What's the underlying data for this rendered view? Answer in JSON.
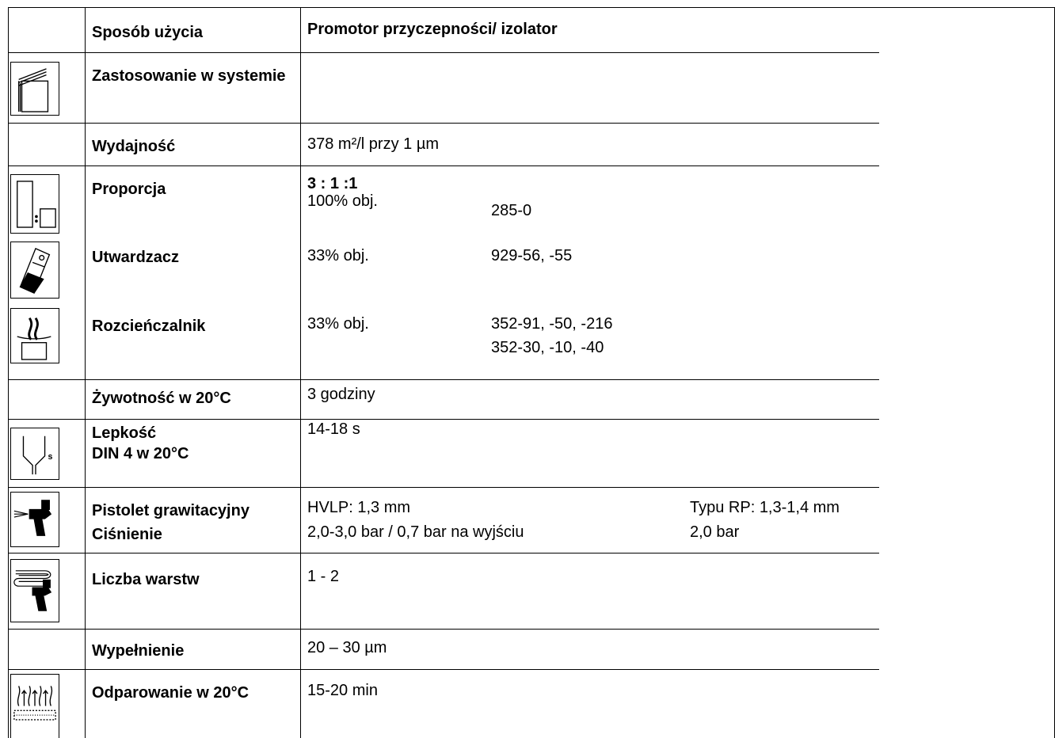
{
  "header": {
    "col1": "Sposób użycia",
    "col2": "Promotor przyczepności/ izolator"
  },
  "rows": {
    "system": {
      "label": "Zastosowanie w systemie",
      "icon": "system-layers-icon"
    },
    "yield": {
      "label": "Wydajność",
      "value": "378 m²/l przy 1 µm"
    },
    "ratio": {
      "label": "Proporcja",
      "value_bold": "3 : 1 :1",
      "amount": "100% obj.",
      "product": "285-0",
      "icon": "mixing-ratio-icon"
    },
    "hardener": {
      "label": "Utwardzacz",
      "amount": "33% obj.",
      "product": "929-56, -55",
      "icon": "hardener-icon"
    },
    "thinner": {
      "label": "Rozcieńczalnik",
      "amount": "33% obj.",
      "product_line1": "352-91, -50, -216",
      "product_line2": "352-30, -10, -40",
      "icon": "thinner-icon"
    },
    "potlife": {
      "label": "Żywotność w 20°C",
      "value": "3 godziny"
    },
    "viscosity": {
      "label_line1": "Lepkość",
      "label_line2": "DIN 4 w 20°C",
      "value": "14-18 s",
      "icon": "viscosity-cup-icon",
      "icon_letter": "s"
    },
    "gun": {
      "label_line1": "Pistolet grawitacyjny",
      "label_line2": "Ciśnienie",
      "hvlp_line1": "HVLP: 1,3 mm",
      "hvlp_line2": "2,0-3,0 bar / 0,7 bar na wyjściu",
      "rp_line1": "Typu RP: 1,3-1,4 mm",
      "rp_line2": "2,0 bar",
      "icon": "spray-gun-icon"
    },
    "coats": {
      "label": "Liczba warstw",
      "value": "1 - 2",
      "icon": "spray-coats-icon"
    },
    "film": {
      "label": "Wypełnienie",
      "value": "20 – 30 µm"
    },
    "flash": {
      "label": "Odparowanie w 20°C",
      "value": "15-20 min",
      "icon": "flash-off-icon"
    }
  }
}
